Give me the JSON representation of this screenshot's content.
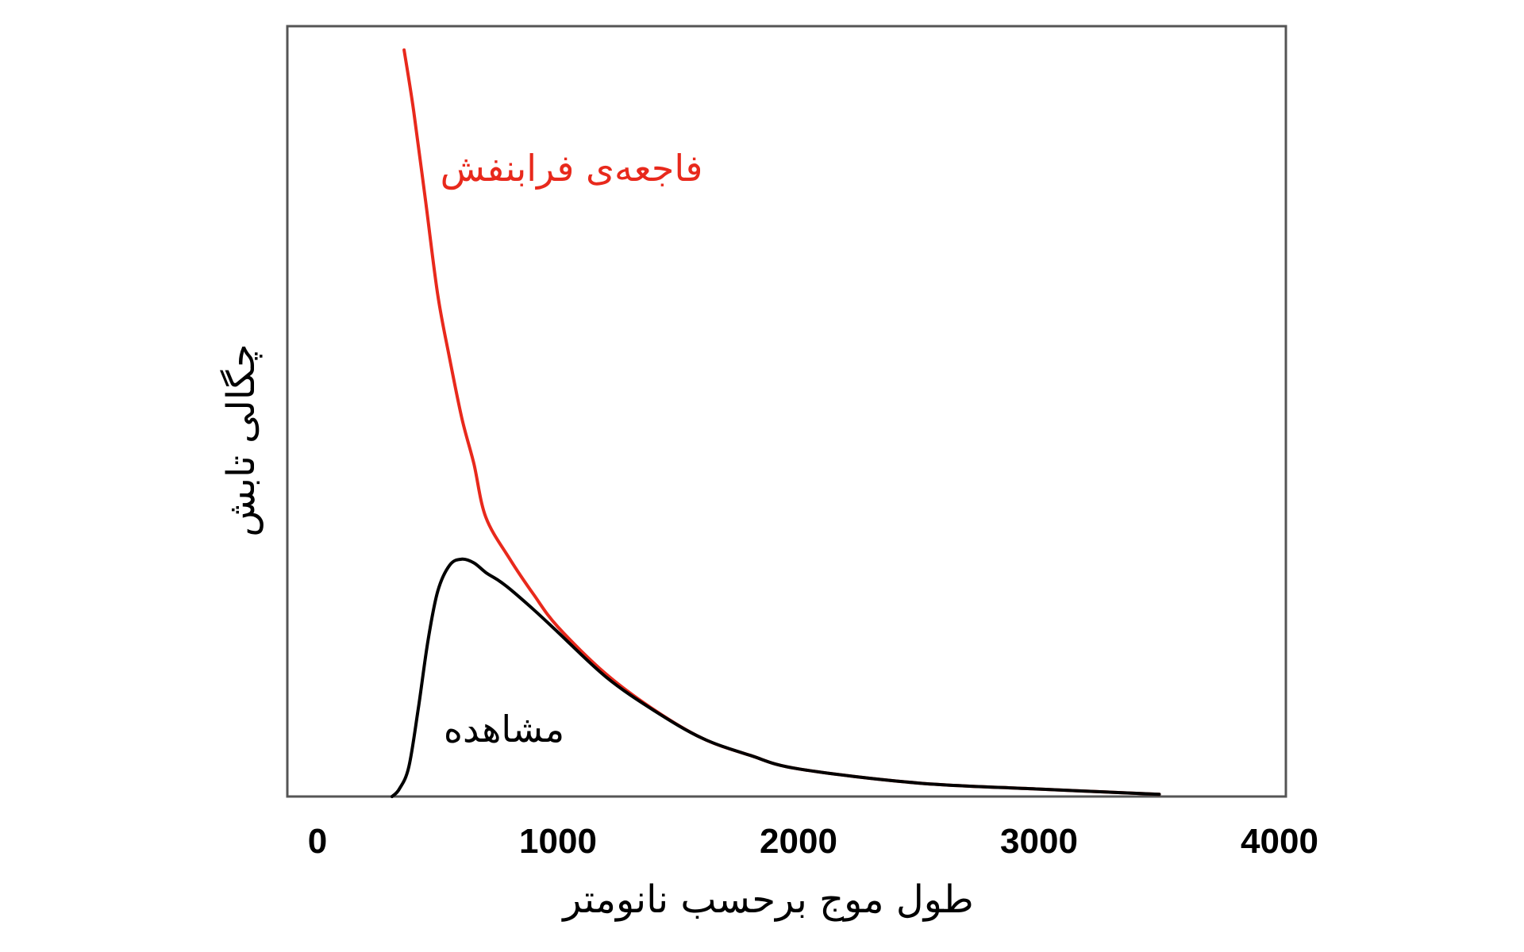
{
  "chart_data": {
    "type": "line",
    "xlabel": "طول موج برحسب نانومتر",
    "ylabel": "چگالی تابش",
    "xlim": [
      0,
      4000
    ],
    "x_ticks": [
      "0",
      "1000",
      "2000",
      "3000",
      "4000"
    ],
    "y_ticks": [],
    "grid": false,
    "series": [
      {
        "name": "فاجعه‌ی فرابنفش",
        "color": "#e8291c",
        "x": [
          360,
          400,
          450,
          500,
          550,
          600,
          650,
          700,
          800,
          900,
          1000,
          1200,
          1400,
          1600,
          1800,
          2000,
          2500,
          3000,
          3500
        ],
        "y": [
          1.0,
          0.918,
          0.796,
          0.672,
          0.586,
          0.507,
          0.446,
          0.374,
          0.318,
          0.27,
          0.227,
          0.164,
          0.116,
          0.078,
          0.055,
          0.037,
          0.018,
          0.01,
          0.003
        ]
      },
      {
        "name": "مشاهده",
        "color": "#000000",
        "x": [
          310,
          340,
          380,
          420,
          460,
          500,
          550,
          600,
          650,
          700,
          750,
          800,
          900,
          1000,
          1200,
          1400,
          1600,
          1800,
          2000,
          2500,
          3000,
          3500
        ],
        "y": [
          0.0,
          0.01,
          0.04,
          0.12,
          0.21,
          0.275,
          0.31,
          0.318,
          0.313,
          0.3,
          0.29,
          0.278,
          0.25,
          0.22,
          0.16,
          0.115,
          0.078,
          0.055,
          0.037,
          0.018,
          0.01,
          0.003
        ]
      }
    ]
  }
}
